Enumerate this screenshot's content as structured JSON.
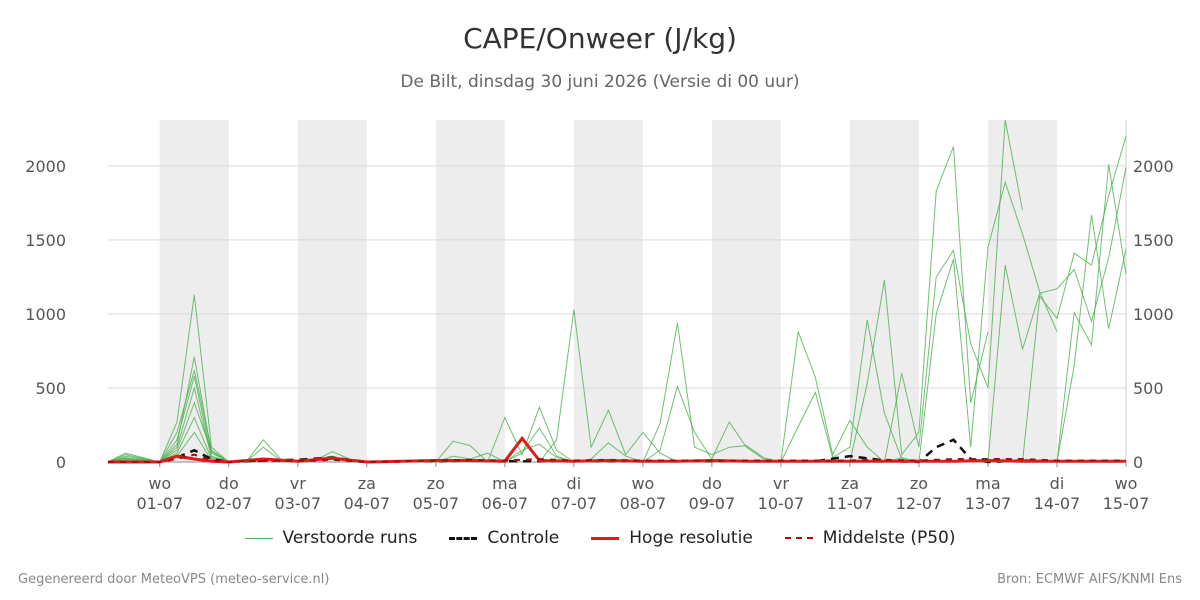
{
  "title": "CAPE/Onweer (J/kg)",
  "subtitle": "De Bilt, dinsdag 30 juni 2026 (Versie di 00 uur)",
  "footer": {
    "left": "Gegenereerd door MeteoVPS (meteo-service.nl)",
    "right": "Bron: ECMWF AIFS/KNMI Ens"
  },
  "legend": [
    {
      "label": "Verstoorde runs",
      "color": "#4caf50",
      "style": "thin"
    },
    {
      "label": "Controle",
      "color": "#111111",
      "style": "dashed"
    },
    {
      "label": "Hoge resolutie",
      "color": "#e11b1b",
      "style": "solid"
    },
    {
      "label": "Middelste (P50)",
      "color": "#a01010",
      "style": "dashed"
    }
  ],
  "chart_data": {
    "type": "line",
    "xlim": [
      -0.75,
      14.0
    ],
    "ylim": [
      0,
      2310
    ],
    "yticks": [
      0,
      500,
      1000,
      1500,
      2000
    ],
    "grid": "horizontal",
    "legend_position": "bottom",
    "x_tick_days": [
      "wo",
      "do",
      "vr",
      "za",
      "zo",
      "ma",
      "di",
      "wo",
      "do",
      "vr",
      "za",
      "zo",
      "ma",
      "di",
      "wo"
    ],
    "x_tick_dates": [
      "01-07",
      "02-07",
      "03-07",
      "04-07",
      "05-07",
      "06-07",
      "07-07",
      "08-07",
      "09-07",
      "10-07",
      "11-07",
      "12-07",
      "13-07",
      "14-07",
      "15-07"
    ],
    "shaded_days": [
      [
        0,
        1
      ],
      [
        2,
        3
      ],
      [
        4,
        5
      ],
      [
        6,
        7
      ],
      [
        8,
        9
      ],
      [
        10,
        11
      ],
      [
        12,
        13
      ]
    ],
    "series": [
      {
        "name": "Controle",
        "color": "#111111",
        "dash": "8,6",
        "width": 2.5,
        "x": [
          -0.75,
          0,
          0.25,
          0.5,
          0.75,
          1,
          1.5,
          2,
          2.5,
          3,
          3.5,
          4,
          4.5,
          5,
          5.5,
          6,
          6.5,
          7,
          7.5,
          8,
          8.5,
          9,
          9.5,
          10,
          10.5,
          11,
          11.25,
          11.5,
          11.75,
          12,
          12.5,
          13,
          13.5,
          14
        ],
        "y": [
          0,
          0,
          30,
          80,
          20,
          0,
          10,
          15,
          30,
          0,
          5,
          5,
          10,
          5,
          5,
          5,
          5,
          5,
          5,
          5,
          5,
          5,
          5,
          40,
          10,
          0,
          100,
          150,
          20,
          0,
          10,
          5,
          5,
          5
        ]
      },
      {
        "name": "Hoge resolutie",
        "color": "#e11b1b",
        "dash": "",
        "width": 3,
        "x": [
          -0.75,
          0,
          0.25,
          0.5,
          0.75,
          1,
          1.5,
          2,
          2.5,
          3,
          3.5,
          4,
          4.5,
          5,
          5.25,
          5.5,
          6,
          6.5,
          7,
          7.5,
          8,
          8.5,
          9,
          9.5,
          10,
          10.5,
          11,
          11.5,
          12,
          12.5,
          13,
          13.5,
          14
        ],
        "y": [
          0,
          0,
          40,
          20,
          5,
          0,
          20,
          5,
          25,
          0,
          5,
          10,
          10,
          5,
          160,
          10,
          5,
          10,
          5,
          5,
          10,
          5,
          5,
          5,
          5,
          5,
          5,
          5,
          10,
          5,
          5,
          5,
          5
        ]
      },
      {
        "name": "Middelste (P50)",
        "color": "#a01010",
        "dash": "6,6",
        "width": 2,
        "x": [
          -0.75,
          0,
          0.25,
          0.5,
          0.75,
          1,
          1.5,
          2,
          2.5,
          3,
          3.5,
          4,
          4.5,
          5,
          5.5,
          6,
          6.5,
          7,
          7.5,
          8,
          8.5,
          9,
          9.5,
          10,
          10.5,
          11,
          11.5,
          12,
          12.5,
          13,
          13.5,
          14
        ],
        "y": [
          0,
          0,
          20,
          50,
          10,
          0,
          10,
          5,
          15,
          0,
          5,
          10,
          15,
          10,
          20,
          10,
          15,
          10,
          10,
          10,
          10,
          10,
          10,
          10,
          15,
          10,
          20,
          20,
          20,
          10,
          10,
          10
        ]
      }
    ],
    "ensemble": [
      {
        "x": [
          -0.75,
          -0.5,
          0,
          0.25,
          0.5,
          0.75,
          1
        ],
        "y": [
          0,
          60,
          0,
          270,
          1130,
          100,
          0
        ]
      },
      {
        "x": [
          -0.75,
          -0.5,
          0,
          0.25,
          0.5,
          0.75,
          1
        ],
        "y": [
          0,
          40,
          0,
          120,
          710,
          60,
          0
        ]
      },
      {
        "x": [
          -0.75,
          -0.5,
          0,
          0.25,
          0.5,
          0.75,
          1
        ],
        "y": [
          0,
          20,
          0,
          200,
          620,
          80,
          0
        ]
      },
      {
        "x": [
          -0.75,
          -0.5,
          0,
          0.25,
          0.5,
          0.75,
          1
        ],
        "y": [
          0,
          30,
          0,
          150,
          580,
          40,
          0
        ]
      },
      {
        "x": [
          -0.75,
          -0.5,
          0,
          0.25,
          0.5,
          0.75,
          1
        ],
        "y": [
          0,
          10,
          0,
          100,
          500,
          30,
          0
        ]
      },
      {
        "x": [
          -0.75,
          -0.5,
          0,
          0.25,
          0.5,
          0.75,
          1
        ],
        "y": [
          0,
          50,
          0,
          80,
          400,
          70,
          0
        ]
      },
      {
        "x": [
          -0.75,
          -0.5,
          0,
          0.25,
          0.5,
          0.75,
          1
        ],
        "y": [
          0,
          25,
          0,
          60,
          300,
          20,
          0
        ]
      },
      {
        "x": [
          -0.75,
          -0.5,
          0,
          0.25,
          0.5,
          0.75,
          1
        ],
        "y": [
          0,
          15,
          0,
          40,
          200,
          10,
          0
        ]
      },
      {
        "x": [
          1,
          1.25,
          1.5,
          1.75,
          2,
          2.25,
          2.5,
          2.75,
          3,
          3.5,
          4
        ],
        "y": [
          0,
          0,
          150,
          20,
          0,
          10,
          70,
          20,
          0,
          10,
          0
        ]
      },
      {
        "x": [
          1,
          1.25,
          1.5,
          1.75,
          2,
          2.25,
          2.5,
          2.75,
          3,
          3.5,
          4
        ],
        "y": [
          0,
          0,
          100,
          10,
          0,
          20,
          40,
          10,
          0,
          5,
          0
        ]
      },
      {
        "x": [
          4,
          4.25,
          4.5,
          4.75,
          5,
          5.25,
          5.5,
          5.75,
          6
        ],
        "y": [
          0,
          140,
          110,
          0,
          300,
          50,
          370,
          80,
          0
        ]
      },
      {
        "x": [
          4,
          4.25,
          4.5,
          4.75,
          5,
          5.25,
          5.5,
          5.75,
          6
        ],
        "y": [
          0,
          40,
          20,
          60,
          0,
          80,
          120,
          30,
          0
        ]
      },
      {
        "x": [
          5,
          5.25,
          5.5,
          5.75,
          6,
          6.25,
          6.5,
          6.75,
          7
        ],
        "y": [
          0,
          60,
          230,
          40,
          0,
          20,
          130,
          40,
          0
        ]
      },
      {
        "x": [
          5.5,
          5.75,
          6,
          6.25,
          6.5,
          6.75,
          7,
          7.25,
          7.5
        ],
        "y": [
          0,
          150,
          1030,
          100,
          350,
          50,
          200,
          60,
          0
        ]
      },
      {
        "x": [
          7,
          7.25,
          7.5,
          7.75,
          8,
          8.25,
          8.5,
          8.75,
          9
        ],
        "y": [
          0,
          260,
          940,
          100,
          50,
          100,
          110,
          30,
          0
        ]
      },
      {
        "x": [
          7,
          7.25,
          7.5,
          7.75,
          8,
          8.25,
          8.5,
          8.75,
          9
        ],
        "y": [
          0,
          80,
          510,
          200,
          20,
          270,
          100,
          20,
          0
        ]
      },
      {
        "x": [
          9,
          9.25,
          9.5,
          9.75,
          10,
          10.25,
          10.5,
          10.75,
          11
        ],
        "y": [
          0,
          880,
          570,
          50,
          280,
          100,
          0,
          30,
          0
        ]
      },
      {
        "x": [
          9,
          9.25,
          9.5,
          9.75,
          10,
          10.25,
          10.5,
          10.75,
          11
        ],
        "y": [
          0,
          240,
          470,
          30,
          100,
          960,
          330,
          20,
          0
        ]
      },
      {
        "x": [
          10,
          10.25,
          10.5,
          10.75,
          11,
          11.25,
          11.5,
          11.75,
          12
        ],
        "y": [
          0,
          530,
          1230,
          50,
          200,
          1830,
          2130,
          400,
          880
        ]
      },
      {
        "x": [
          10.5,
          10.75,
          11,
          11.25,
          11.5,
          11.75,
          12,
          12.25,
          12.5
        ],
        "y": [
          0,
          600,
          100,
          1250,
          1430,
          800,
          500,
          2310,
          1700
        ]
      },
      {
        "x": [
          11,
          11.25,
          11.5,
          11.75,
          12,
          12.25,
          12.5,
          12.75,
          13
        ],
        "y": [
          0,
          1000,
          1370,
          100,
          1450,
          1890,
          1540,
          1150,
          880
        ]
      },
      {
        "x": [
          12,
          12.25,
          12.5,
          12.75,
          13,
          13.25,
          13.5,
          13.75,
          14
        ],
        "y": [
          0,
          1330,
          760,
          1140,
          1170,
          1300,
          950,
          1380,
          1990
        ]
      },
      {
        "x": [
          12.5,
          12.75,
          13,
          13.25,
          13.5,
          13.75,
          14
        ],
        "y": [
          0,
          1120,
          970,
          1410,
          1330,
          1800,
          2200
        ]
      },
      {
        "x": [
          13,
          13.25,
          13.5,
          13.75,
          14
        ],
        "y": [
          0,
          1010,
          790,
          2010,
          1270
        ]
      },
      {
        "x": [
          13,
          13.25,
          13.5,
          13.75,
          14
        ],
        "y": [
          0,
          650,
          1670,
          900,
          1440
        ]
      }
    ]
  }
}
